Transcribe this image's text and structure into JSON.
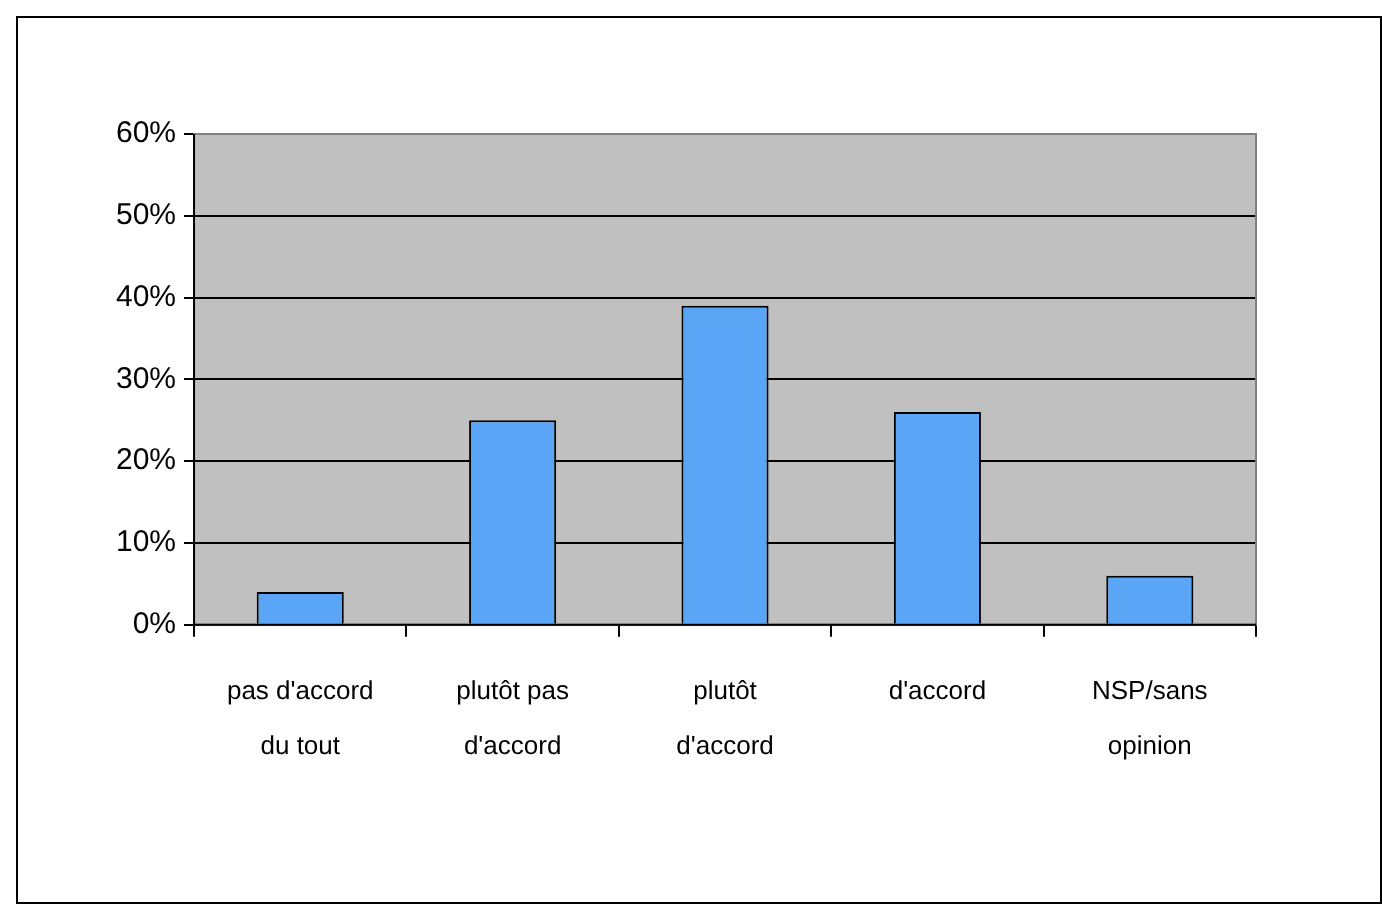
{
  "chart_data": {
    "type": "bar",
    "categories": [
      "pas d'accord du tout",
      "plutôt pas d'accord",
      "plutôt d'accord",
      "d'accord",
      "NSP/sans opinion"
    ],
    "values": [
      4,
      25,
      39,
      26,
      6
    ],
    "color": "#5aa5f5",
    "ylim": [
      0,
      60
    ],
    "yticks": [
      {
        "value": 0,
        "label": "0%"
      },
      {
        "value": 10,
        "label": "10%"
      },
      {
        "value": 20,
        "label": "20%"
      },
      {
        "value": 30,
        "label": "30%"
      },
      {
        "value": 40,
        "label": "40%"
      },
      {
        "value": 50,
        "label": "50%"
      },
      {
        "value": 60,
        "label": "60%"
      }
    ],
    "grid": "y",
    "legend": false
  }
}
